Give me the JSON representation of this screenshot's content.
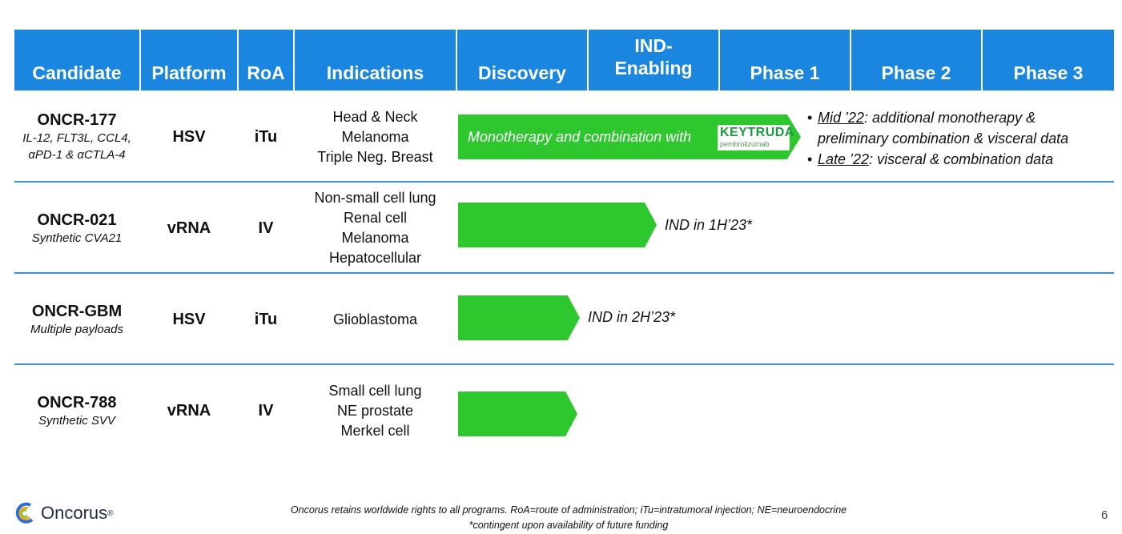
{
  "header": {
    "candidate": "Candidate",
    "platform": "Platform",
    "roa": "RoA",
    "indications": "Indications",
    "discovery": "Discovery",
    "ind_enabling_1": "IND-",
    "ind_enabling_2": "Enabling",
    "phase1": "Phase 1",
    "phase2": "Phase 2",
    "phase3": "Phase 3"
  },
  "rows": [
    {
      "name": "ONCR-177",
      "sub": [
        "IL-12, FLT3L, CCL4,",
        "αPD-1 & αCTLA-4"
      ],
      "platform": "HSV",
      "roa": "iTu",
      "indications": [
        "Head & Neck",
        "Melanoma",
        "Triple Neg. Breast"
      ],
      "bar_text": "Monotherapy and combination with",
      "keytruda_top": "KEYTRUDA",
      "keytruda_bottom": "pembrolizumab",
      "bar_end_phase": "Phase 1",
      "bullets": [
        {
          "lead": "Mid ’22",
          "rest1": ": additional monotherapy &",
          "rest2": "preliminary combination & visceral data"
        },
        {
          "lead": "Late ’22",
          "rest1": ": visceral & combination data"
        }
      ]
    },
    {
      "name": "ONCR-021",
      "sub": [
        "Synthetic CVA21"
      ],
      "platform": "vRNA",
      "roa": "IV",
      "indications": [
        "Non-small cell lung",
        "Renal cell",
        "Melanoma",
        "Hepatocellular"
      ],
      "bar_end_phase": "IND-Enabling",
      "note": "IND in 1H’23*"
    },
    {
      "name": "ONCR-GBM",
      "sub": [
        "Multiple payloads"
      ],
      "platform": "HSV",
      "roa": "iTu",
      "indications": [
        "Glioblastoma"
      ],
      "bar_end_phase": "Discovery",
      "note": "IND in 2H’23*"
    },
    {
      "name": "ONCR-788",
      "sub": [
        "Synthetic SVV"
      ],
      "platform": "vRNA",
      "roa": "IV",
      "indications": [
        "Small cell lung",
        "NE prostate",
        "Merkel cell"
      ],
      "bar_end_phase": "Discovery"
    }
  ],
  "footer": {
    "line1": "Oncorus retains worldwide rights to all programs. RoA=route of administration; iTu=intratumoral injection; NE=neuroendocrine",
    "line2": "*contingent upon availability of future funding"
  },
  "logo_text": "Oncorus",
  "logo_mark": "®",
  "page_number": "6",
  "colors": {
    "header_bg": "#1a86e0",
    "bar_green": "#2ec82e",
    "row_line": "#3d8fdb"
  }
}
